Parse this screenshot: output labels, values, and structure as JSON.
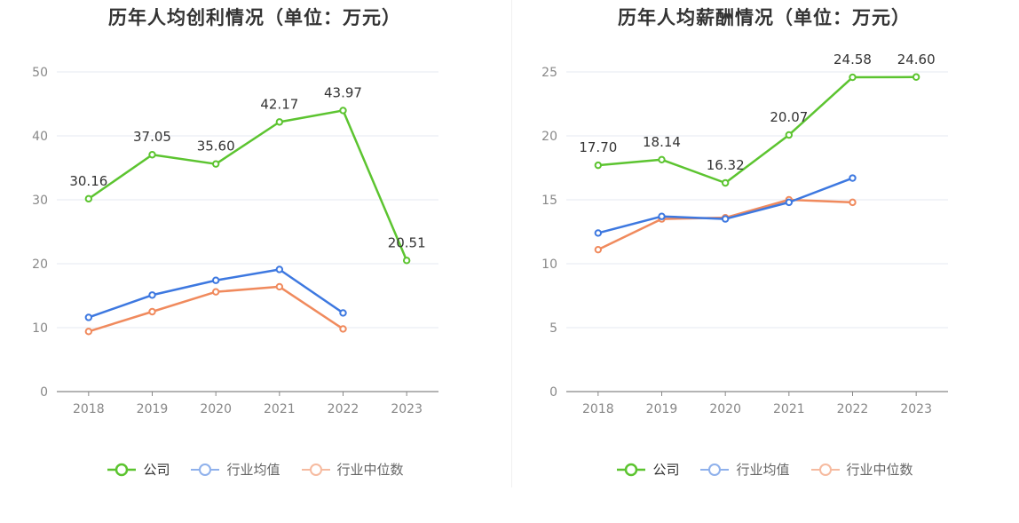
{
  "colors": {
    "company": "#5cc430",
    "avg": "#3d78e0",
    "median": "#f08a5d"
  },
  "legend": {
    "company": "公司",
    "avg": "行业均值",
    "median": "行业中位数"
  },
  "chart_data": [
    {
      "type": "line",
      "title": "历年人均创利情况（单位：万元）",
      "categories": [
        "2018",
        "2019",
        "2020",
        "2021",
        "2022",
        "2023"
      ],
      "ylim": [
        0,
        50
      ],
      "yticks": [
        0,
        10,
        20,
        30,
        40,
        50
      ],
      "grid": true,
      "legend_position": "bottom",
      "series": [
        {
          "name": "公司",
          "values": [
            30.16,
            37.05,
            35.6,
            42.17,
            43.97,
            20.51
          ],
          "labels": [
            "30.16",
            "37.05",
            "35.60",
            "42.17",
            "43.97",
            "20.51"
          ]
        },
        {
          "name": "行业均值",
          "values": [
            11.6,
            15.1,
            17.4,
            19.1,
            12.3,
            null
          ]
        },
        {
          "name": "行业中位数",
          "values": [
            9.4,
            12.5,
            15.6,
            16.4,
            9.8,
            null
          ]
        }
      ]
    },
    {
      "type": "line",
      "title": "历年人均薪酬情况（单位：万元）",
      "categories": [
        "2018",
        "2019",
        "2020",
        "2021",
        "2022",
        "2023"
      ],
      "ylim": [
        0,
        25
      ],
      "yticks": [
        0,
        5,
        10,
        15,
        20,
        25
      ],
      "grid": true,
      "legend_position": "bottom",
      "series": [
        {
          "name": "公司",
          "values": [
            17.7,
            18.14,
            16.32,
            20.07,
            24.58,
            24.6
          ],
          "labels": [
            "17.70",
            "18.14",
            "16.32",
            "20.07",
            "24.58",
            "24.60"
          ]
        },
        {
          "name": "行业均值",
          "values": [
            12.4,
            13.7,
            13.5,
            14.8,
            16.7,
            null
          ]
        },
        {
          "name": "行业中位数",
          "values": [
            11.1,
            13.5,
            13.6,
            15.0,
            14.8,
            null
          ]
        }
      ]
    }
  ]
}
